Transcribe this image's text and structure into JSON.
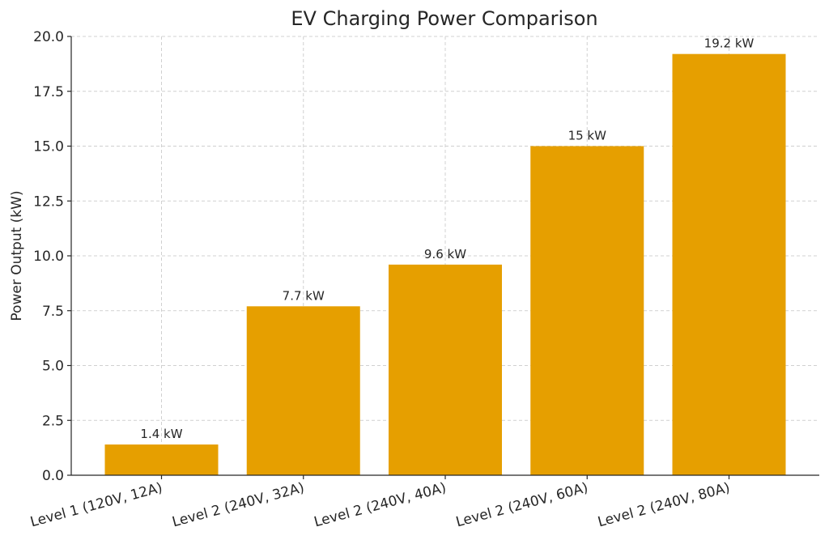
{
  "chart_data": {
    "type": "bar",
    "title": "EV Charging Power Comparison",
    "xlabel": "",
    "ylabel": "Power Output (kW)",
    "categories": [
      "Level 1 (120V, 12A)",
      "Level 2 (240V, 32A)",
      "Level 2 (240V, 40A)",
      "Level 2 (240V, 60A)",
      "Level 2 (240V, 80A)"
    ],
    "values": [
      1.4,
      7.7,
      9.6,
      15,
      19.2
    ],
    "data_labels": [
      "1.4 kW",
      "7.7 kW",
      "9.6 kW",
      "15 kW",
      "19.2 kW"
    ],
    "ylim": [
      0,
      20
    ],
    "yticks": [
      "0.0",
      "2.5",
      "5.0",
      "7.5",
      "10.0",
      "12.5",
      "15.0",
      "17.5",
      "20.0"
    ],
    "ytick_values": [
      0,
      2.5,
      5,
      7.5,
      10,
      12.5,
      15,
      17.5,
      20
    ],
    "grid": true,
    "bar_color": "#e69f00"
  }
}
